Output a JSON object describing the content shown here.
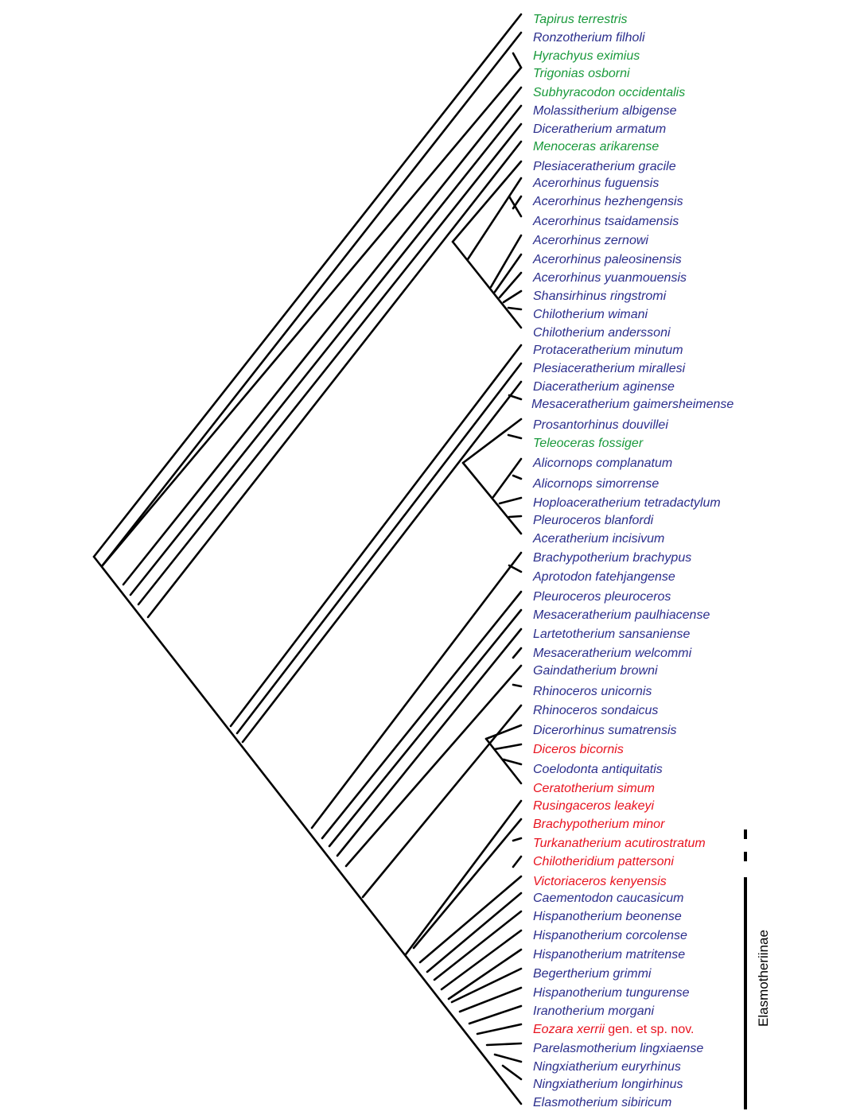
{
  "colors": {
    "outgroup_green": "#1a9a3c",
    "blue": "#2b2e8c",
    "red": "#e8131f",
    "branch": "#000000"
  },
  "taxa": [
    {
      "name": "Tapirus terrestris",
      "color": "green"
    },
    {
      "name": "Ronzotherium filholi",
      "color": "blue"
    },
    {
      "name": "Hyrachyus eximius",
      "color": "green"
    },
    {
      "name": "Trigonias osborni",
      "color": "green"
    },
    {
      "name": "Subhyracodon occidentalis",
      "color": "green"
    },
    {
      "name": "Molassitherium albigense",
      "color": "blue"
    },
    {
      "name": "Diceratherium armatum",
      "color": "blue"
    },
    {
      "name": "Menoceras arikarense",
      "color": "green"
    },
    {
      "name": "Plesiaceratherium gracile",
      "color": "blue"
    },
    {
      "name": "Acerorhinus fuguensis",
      "color": "blue"
    },
    {
      "name": "Acerorhinus hezhengensis",
      "color": "blue"
    },
    {
      "name": "Acerorhinus tsaidamensis",
      "color": "blue"
    },
    {
      "name": "Acerorhinus zernowi",
      "color": "blue"
    },
    {
      "name": "Acerorhinus paleosinensis",
      "color": "blue"
    },
    {
      "name": "Acerorhinus yuanmouensis",
      "color": "blue"
    },
    {
      "name": "Shansirhinus ringstromi",
      "color": "blue"
    },
    {
      "name": "Chilotherium wimani",
      "color": "blue"
    },
    {
      "name": "Chilotherium anderssoni",
      "color": "blue"
    },
    {
      "name": "Protaceratherium minutum",
      "color": "blue"
    },
    {
      "name": "Plesiaceratherium mirallesi",
      "color": "blue"
    },
    {
      "name": "Diaceratherium aginense",
      "color": "blue"
    },
    {
      "name": "Mesaceratherium gaimersheimense",
      "color": "blue"
    },
    {
      "name": "Prosantorhinus douvillei",
      "color": "blue"
    },
    {
      "name": "Teleoceras fossiger",
      "color": "green"
    },
    {
      "name": "Alicornops complanatum",
      "color": "blue"
    },
    {
      "name": "Alicornops simorrense",
      "color": "blue"
    },
    {
      "name": "Hoploaceratherium tetradactylum",
      "color": "blue"
    },
    {
      "name": "Pleuroceros blanfordi",
      "color": "blue"
    },
    {
      "name": "Aceratherium incisivum",
      "color": "blue"
    },
    {
      "name": "Brachypotherium brachypus",
      "color": "blue"
    },
    {
      "name": "Aprotodon fatehjangense",
      "color": "blue"
    },
    {
      "name": "Pleuroceros pleuroceros",
      "color": "blue"
    },
    {
      "name": "Mesaceratherium paulhiacense",
      "color": "blue"
    },
    {
      "name": "Lartetotherium sansaniense",
      "color": "blue"
    },
    {
      "name": "Mesaceratherium welcommi",
      "color": "blue"
    },
    {
      "name": "Gaindatherium browni",
      "color": "blue"
    },
    {
      "name": "Rhinoceros unicornis",
      "color": "blue"
    },
    {
      "name": "Rhinoceros sondaicus",
      "color": "blue"
    },
    {
      "name": "Dicerorhinus sumatrensis",
      "color": "blue"
    },
    {
      "name": "Diceros bicornis",
      "color": "red"
    },
    {
      "name": "Coelodonta antiquitatis",
      "color": "blue"
    },
    {
      "name": "Ceratotherium simum",
      "color": "red"
    },
    {
      "name": "Rusingaceros leakeyi",
      "color": "red"
    },
    {
      "name": "Brachypotherium minor",
      "color": "red"
    },
    {
      "name": "Turkanatherium acutirostratum",
      "color": "red"
    },
    {
      "name": "Chilotheridium pattersoni",
      "color": "red"
    },
    {
      "name": "Victoriaceros kenyensis",
      "color": "red"
    },
    {
      "name": "Caementodon caucasicum",
      "color": "blue"
    },
    {
      "name": "Hispanotherium beonense",
      "color": "blue"
    },
    {
      "name": "Hispanotherium corcolense",
      "color": "blue"
    },
    {
      "name": "Hispanotherium matritense",
      "color": "blue"
    },
    {
      "name": "Begertherium grimmi",
      "color": "blue"
    },
    {
      "name": "Hispanotherium tungurense",
      "color": "blue"
    },
    {
      "name": "Iranotherium morgani",
      "color": "blue"
    },
    {
      "name": "Eozara xerrii",
      "suffix": " gen. et sp. nov.",
      "color": "red"
    },
    {
      "name": "Parelasmotherium lingxiaense",
      "color": "blue"
    },
    {
      "name": "Ningxiatherium euryrhinus",
      "color": "blue"
    },
    {
      "name": "Ningxiatherium longirhinus",
      "color": "blue"
    },
    {
      "name": "Elasmotherium sibiricum",
      "color": "blue"
    }
  ],
  "clade_label": "Elasmotheriinae"
}
